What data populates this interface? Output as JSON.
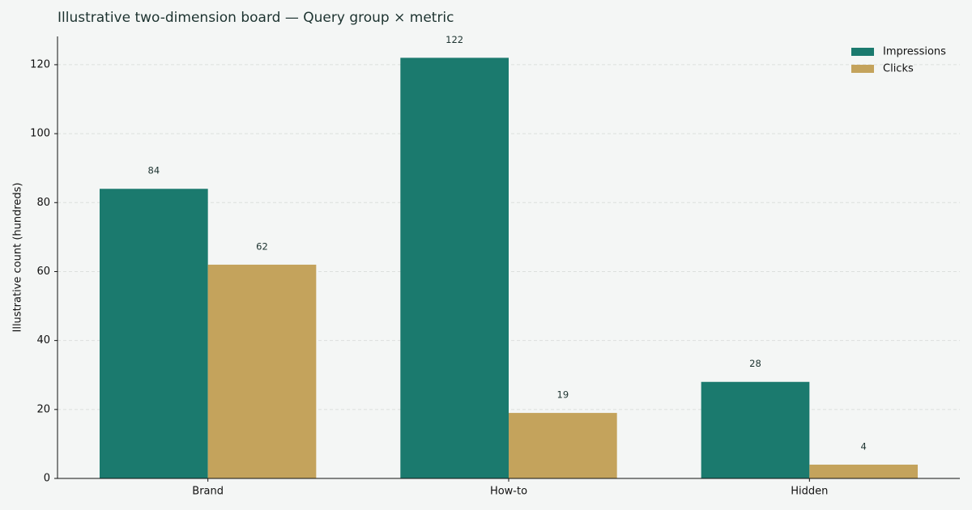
{
  "chart_data": {
    "type": "bar",
    "title": "Illustrative two-dimension board — Query group × metric",
    "y_label": "Illustrative count (hundreds)",
    "categories": [
      "Brand",
      "How-to",
      "Hidden"
    ],
    "series": [
      {
        "name": "Impressions",
        "color": "#1b7a6e",
        "values": [
          84,
          122,
          28
        ]
      },
      {
        "name": "Clicks",
        "color": "#c4a35c",
        "values": [
          62,
          19,
          4
        ]
      }
    ],
    "ylim": [
      0,
      128.2
    ],
    "yticks": [
      0,
      20,
      40,
      60,
      80,
      100,
      120
    ],
    "grid": true,
    "legend": "upper-right"
  }
}
